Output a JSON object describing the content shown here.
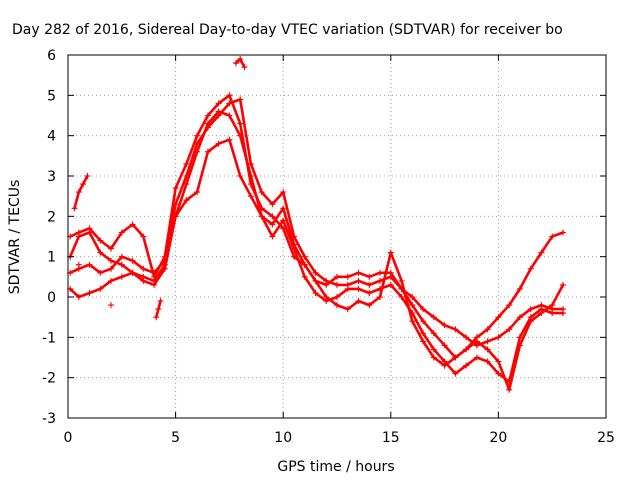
{
  "chart_data": {
    "type": "scatter",
    "title": "Day 282 of 2016, Sidereal Day-to-day VTEC variation (SDTVAR) for receiver bo",
    "xlabel": "GPS time / hours",
    "ylabel": "SDTVAR / TECUs",
    "xlim": [
      0,
      25
    ],
    "ylim": [
      -3,
      6
    ],
    "xticks": [
      "0",
      "5",
      "10",
      "15",
      "20",
      "25"
    ],
    "yticks": [
      "-3",
      "-2",
      "-1",
      "0",
      "1",
      "2",
      "3",
      "4",
      "5",
      "6"
    ],
    "grid": true,
    "marker": "+",
    "color": "#ff0000",
    "series": [
      {
        "x": [
          0.1,
          0.5,
          1.0,
          1.5,
          2.0,
          2.5,
          3.0,
          3.5,
          4.0,
          4.5,
          5.0,
          5.5,
          6.0,
          6.5,
          7.0,
          7.5,
          8.0,
          8.5,
          9.0,
          9.5,
          10.0,
          10.5,
          11.0,
          11.5,
          12.0,
          12.5,
          13.0,
          13.5,
          14.0,
          14.5,
          15.0,
          15.5,
          16.0,
          16.5,
          17.0,
          17.5,
          18.0,
          18.5,
          19.0,
          19.5,
          20.0,
          20.5,
          21.0,
          21.5,
          22.0,
          22.5,
          23.0
        ],
        "y": [
          1.5,
          1.6,
          1.7,
          1.4,
          1.2,
          1.6,
          1.8,
          1.5,
          0.5,
          1.0,
          2.7,
          3.3,
          4.0,
          4.5,
          4.8,
          5.0,
          4.3,
          2.8,
          2.2,
          2.0,
          1.7,
          1.0,
          0.8,
          0.4,
          0.3,
          0.5,
          0.5,
          0.6,
          0.5,
          0.6,
          0.6,
          0.2,
          0.0,
          -0.3,
          -0.5,
          -0.7,
          -0.8,
          -1.0,
          -1.2,
          -1.1,
          -1.0,
          -0.8,
          -0.5,
          -0.3,
          -0.2,
          -0.3,
          -0.3
        ]
      },
      {
        "x": [
          0.1,
          0.5,
          1.0,
          1.5,
          2.0,
          2.5,
          3.0,
          3.5,
          4.0,
          4.5,
          5.0,
          5.5,
          6.0,
          6.5,
          7.0,
          7.5,
          8.0,
          8.5,
          9.0,
          9.5,
          10.0,
          10.5,
          11.0,
          11.5,
          12.0,
          12.5,
          13.0,
          13.5,
          14.0,
          14.5,
          15.0,
          15.5,
          16.0,
          16.5,
          17.0,
          17.5,
          18.0,
          18.5,
          19.0,
          19.5,
          20.0,
          20.5,
          21.0,
          21.5,
          22.0,
          22.5,
          23.0
        ],
        "y": [
          0.6,
          0.7,
          0.8,
          0.6,
          0.7,
          1.0,
          0.9,
          0.7,
          0.6,
          0.9,
          2.3,
          3.0,
          3.8,
          4.2,
          4.5,
          4.8,
          4.9,
          3.3,
          2.6,
          2.3,
          2.6,
          1.5,
          1.0,
          0.6,
          0.4,
          0.3,
          0.3,
          0.4,
          0.3,
          0.4,
          0.5,
          0.2,
          -0.2,
          -0.6,
          -0.9,
          -1.2,
          -1.5,
          -1.3,
          -1.0,
          -0.8,
          -0.5,
          -0.2,
          0.2,
          0.7,
          1.1,
          1.5,
          1.6
        ]
      },
      {
        "x": [
          0.1,
          0.5,
          1.0,
          1.5,
          2.0,
          2.5,
          3.0,
          3.5,
          4.0,
          4.5,
          5.0,
          5.5,
          6.0,
          6.5,
          7.0,
          7.5,
          8.0,
          8.5,
          9.0,
          9.5,
          10.0,
          10.5,
          11.0,
          11.5,
          12.0,
          12.5,
          13.0,
          13.5,
          14.0,
          14.5,
          15.0,
          15.5,
          16.0,
          16.5,
          17.0,
          17.5,
          18.0,
          18.5,
          19.0,
          19.5,
          20.0,
          20.5,
          21.0,
          21.5,
          22.0,
          22.5,
          23.0
        ],
        "y": [
          0.2,
          0.0,
          0.1,
          0.2,
          0.4,
          0.5,
          0.6,
          0.4,
          0.3,
          0.7,
          2.0,
          2.4,
          2.6,
          3.6,
          3.8,
          3.9,
          3.0,
          2.5,
          2.0,
          1.5,
          1.9,
          1.2,
          0.5,
          0.1,
          -0.1,
          0.0,
          0.2,
          0.2,
          0.1,
          0.2,
          0.3,
          0.0,
          -0.4,
          -0.9,
          -1.3,
          -1.6,
          -1.9,
          -1.7,
          -1.5,
          -1.6,
          -1.9,
          -2.1,
          -1.0,
          -0.5,
          -0.3,
          -0.4,
          -0.4
        ]
      },
      {
        "x": [
          0.1,
          0.5,
          1.0,
          1.5,
          2.0,
          2.5,
          3.0,
          3.5,
          4.0,
          4.5,
          5.0,
          5.5,
          6.0,
          6.5,
          7.0,
          7.5,
          8.0,
          8.5,
          9.0,
          9.5,
          10.0,
          10.5,
          11.0,
          11.5,
          12.0,
          12.5,
          13.0,
          13.5,
          14.0,
          14.5,
          15.0,
          15.5,
          16.0,
          16.5,
          17.0,
          17.5,
          18.0,
          18.5,
          19.0,
          19.5,
          20.0,
          20.5,
          21.0,
          21.5,
          22.0,
          22.5,
          23.0
        ],
        "y": [
          1.0,
          1.5,
          1.6,
          1.1,
          0.9,
          0.8,
          0.6,
          0.5,
          0.4,
          0.8,
          2.0,
          2.8,
          3.6,
          4.3,
          4.6,
          4.5,
          4.0,
          3.0,
          2.0,
          1.8,
          2.2,
          1.3,
          0.8,
          0.4,
          0.0,
          -0.2,
          -0.3,
          -0.1,
          -0.2,
          0.0,
          1.1,
          0.4,
          -0.6,
          -1.1,
          -1.5,
          -1.7,
          -1.5,
          -1.3,
          -1.1,
          -1.3,
          -1.6,
          -2.3,
          -1.2,
          -0.6,
          -0.4,
          -0.2,
          0.3
        ]
      },
      {
        "x": [
          0.3,
          0.5,
          0.7,
          0.9
        ],
        "y": [
          2.2,
          2.6,
          2.8,
          3.0
        ]
      },
      {
        "x": [
          7.8,
          8.0,
          8.2
        ],
        "y": [
          5.8,
          5.9,
          5.7
        ]
      },
      {
        "x": [
          4.1,
          4.2,
          4.3
        ],
        "y": [
          -0.5,
          -0.3,
          -0.1
        ]
      },
      {
        "x": [
          2.0,
          0.5
        ],
        "y": [
          -0.2,
          0.8
        ]
      }
    ]
  }
}
